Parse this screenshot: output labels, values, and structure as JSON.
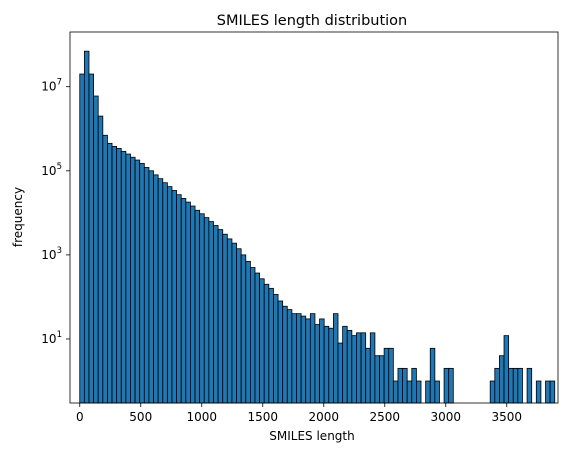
{
  "chart_data": {
    "type": "bar",
    "title": "SMILES length distribution",
    "xlabel": "SMILES length",
    "ylabel": "frequency",
    "yscale": "log",
    "xlim": [
      -80,
      3920
    ],
    "ylim": [
      0.3,
      200000000
    ],
    "bin_width": 37.8,
    "bar_color": "#1f77b4",
    "edge_color": "#000000",
    "grid": false,
    "x_ticks": [
      {
        "value": 0,
        "label": "0"
      },
      {
        "value": 500,
        "label": "500"
      },
      {
        "value": 1000,
        "label": "1000"
      },
      {
        "value": 1500,
        "label": "1500"
      },
      {
        "value": 2000,
        "label": "2000"
      },
      {
        "value": 2500,
        "label": "2500"
      },
      {
        "value": 3000,
        "label": "3000"
      },
      {
        "value": 3500,
        "label": "3500"
      }
    ],
    "y_ticks": [
      {
        "value": 10,
        "base": "10",
        "exp": "1"
      },
      {
        "value": 1000,
        "base": "10",
        "exp": "3"
      },
      {
        "value": 100000,
        "base": "10",
        "exp": "5"
      },
      {
        "value": 10000000,
        "base": "10",
        "exp": "7"
      }
    ],
    "values": [
      20000000,
      70000000,
      20000000,
      6000000,
      2000000,
      700000,
      450000,
      380000,
      340000,
      290000,
      250000,
      210000,
      180000,
      150000,
      120000,
      100000,
      80000,
      65000,
      52000,
      42000,
      34000,
      27000,
      22000,
      18000,
      14500,
      11500,
      9500,
      7700,
      6200,
      5000,
      4000,
      3100,
      2400,
      1900,
      1400,
      1000,
      700,
      500,
      370,
      270,
      200,
      160,
      115,
      80,
      60,
      50,
      40,
      40,
      35,
      30,
      40,
      22,
      30,
      20,
      18,
      40,
      8,
      20,
      16,
      12,
      14,
      14,
      6,
      14,
      4,
      4,
      6,
      6,
      1,
      2,
      2,
      1,
      2,
      1,
      0,
      1,
      6,
      1,
      0,
      2,
      2,
      0,
      0,
      0,
      0,
      0,
      0,
      0,
      0,
      1,
      2,
      4,
      12,
      2,
      2,
      2,
      0,
      2,
      0,
      1,
      0,
      1,
      1
    ]
  }
}
